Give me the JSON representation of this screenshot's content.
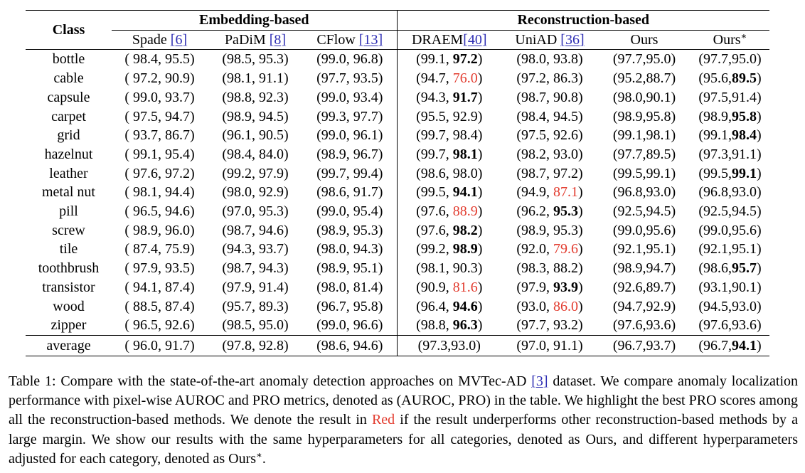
{
  "header": {
    "class_label": "Class",
    "group_embedding": "Embedding-based",
    "group_reconstruction": "Reconstruction-based",
    "methods": [
      {
        "name": "Spade ",
        "ref": "[6]"
      },
      {
        "name": "PaDiM ",
        "ref": "[8]"
      },
      {
        "name": "CFlow ",
        "ref": "[13]"
      },
      {
        "name": "DRAEM",
        "ref": "[40]"
      },
      {
        "name": "UniAD ",
        "ref": "[36]"
      },
      {
        "name": "Ours",
        "ref": ""
      },
      {
        "name": "Ours",
        "ref": "",
        "sup": "∗"
      }
    ]
  },
  "rows": [
    {
      "class": "bottle",
      "cells": [
        [
          {
            "t": "( 98.4, 95.5)"
          }
        ],
        [
          {
            "t": "(98.5, 95.3)"
          }
        ],
        [
          {
            "t": "(99.0, 96.8)"
          }
        ],
        [
          {
            "t": "(99.1, "
          },
          {
            "t": "97.2",
            "s": "b"
          },
          {
            "t": ")"
          }
        ],
        [
          {
            "t": "(98.0, 93.8)"
          }
        ],
        [
          {
            "t": "(97.7,95.0)"
          }
        ],
        [
          {
            "t": "(97.7,95.0)"
          }
        ]
      ]
    },
    {
      "class": "cable",
      "cells": [
        [
          {
            "t": "( 97.2, 90.9)"
          }
        ],
        [
          {
            "t": "(98.1, 91.1)"
          }
        ],
        [
          {
            "t": "(97.7, 93.5)"
          }
        ],
        [
          {
            "t": "(94.7, "
          },
          {
            "t": "76.0",
            "s": "red"
          },
          {
            "t": ")"
          }
        ],
        [
          {
            "t": "(97.2, 86.3)"
          }
        ],
        [
          {
            "t": "(95.2,88.7)"
          }
        ],
        [
          {
            "t": "(95.6,"
          },
          {
            "t": "89.5",
            "s": "b"
          },
          {
            "t": ")"
          }
        ]
      ]
    },
    {
      "class": "capsule",
      "cells": [
        [
          {
            "t": "( 99.0, 93.7)"
          }
        ],
        [
          {
            "t": "(98.8, 92.3)"
          }
        ],
        [
          {
            "t": "(99.0, 93.4)"
          }
        ],
        [
          {
            "t": "(94.3, "
          },
          {
            "t": "91.7",
            "s": "b"
          },
          {
            "t": ")"
          }
        ],
        [
          {
            "t": "(98.7, 90.8)"
          }
        ],
        [
          {
            "t": "(98.0,90.1)"
          }
        ],
        [
          {
            "t": "(97.5,91.4)"
          }
        ]
      ]
    },
    {
      "class": "carpet",
      "cells": [
        [
          {
            "t": "( 97.5, 94.7)"
          }
        ],
        [
          {
            "t": "(98.9, 94.5)"
          }
        ],
        [
          {
            "t": "(99.3, 97.7)"
          }
        ],
        [
          {
            "t": "(95.5, 92.9)"
          }
        ],
        [
          {
            "t": "(98.4, 94.5)"
          }
        ],
        [
          {
            "t": "(98.9,95.8)"
          }
        ],
        [
          {
            "t": "(98.9,"
          },
          {
            "t": "95.8",
            "s": "b"
          },
          {
            "t": ")"
          }
        ]
      ]
    },
    {
      "class": "grid",
      "cells": [
        [
          {
            "t": "( 93.7, 86.7)"
          }
        ],
        [
          {
            "t": "(96.1, 90.5)"
          }
        ],
        [
          {
            "t": "(99.0, 96.1)"
          }
        ],
        [
          {
            "t": "(99.7, 98.4)"
          }
        ],
        [
          {
            "t": "(97.5, 92.6)"
          }
        ],
        [
          {
            "t": "(99.1,98.1)"
          }
        ],
        [
          {
            "t": "(99.1,"
          },
          {
            "t": "98.4",
            "s": "b"
          },
          {
            "t": ")"
          }
        ]
      ]
    },
    {
      "class": "hazelnut",
      "cells": [
        [
          {
            "t": "( 99.1, 95.4)"
          }
        ],
        [
          {
            "t": "(98.4, 84.0)"
          }
        ],
        [
          {
            "t": "(98.9, 96.7)"
          }
        ],
        [
          {
            "t": "(99.7, "
          },
          {
            "t": "98.1",
            "s": "b"
          },
          {
            "t": ")"
          }
        ],
        [
          {
            "t": "(98.2, 93.0)"
          }
        ],
        [
          {
            "t": "(97.7,89.5)"
          }
        ],
        [
          {
            "t": "(97.3,91.1)"
          }
        ]
      ]
    },
    {
      "class": "leather",
      "cells": [
        [
          {
            "t": "( 97.6, 97.2)"
          }
        ],
        [
          {
            "t": "(99.2, 97.9)"
          }
        ],
        [
          {
            "t": "(99.7, 99.4)"
          }
        ],
        [
          {
            "t": "(98.6, 98.0)"
          }
        ],
        [
          {
            "t": "(98.7, 97.2)"
          }
        ],
        [
          {
            "t": "(99.5,99.1)"
          }
        ],
        [
          {
            "t": "(99.5,"
          },
          {
            "t": "99.1",
            "s": "b"
          },
          {
            "t": ")"
          }
        ]
      ]
    },
    {
      "class": "metal nut",
      "cells": [
        [
          {
            "t": "( 98.1, 94.4)"
          }
        ],
        [
          {
            "t": "(98.0, 92.9)"
          }
        ],
        [
          {
            "t": "(98.6, 91.7)"
          }
        ],
        [
          {
            "t": "(99.5, "
          },
          {
            "t": "94.1",
            "s": "b"
          },
          {
            "t": ")"
          }
        ],
        [
          {
            "t": "(94.9, "
          },
          {
            "t": "87.1",
            "s": "red"
          },
          {
            "t": ")"
          }
        ],
        [
          {
            "t": "(96.8,93.0)"
          }
        ],
        [
          {
            "t": "(96.8,93.0)"
          }
        ]
      ]
    },
    {
      "class": "pill",
      "cells": [
        [
          {
            "t": "( 96.5, 94.6)"
          }
        ],
        [
          {
            "t": "(97.0, 95.3)"
          }
        ],
        [
          {
            "t": "(99.0, 95.4)"
          }
        ],
        [
          {
            "t": "(97.6, "
          },
          {
            "t": "88.9",
            "s": "red"
          },
          {
            "t": ")"
          }
        ],
        [
          {
            "t": "(96.2, "
          },
          {
            "t": "95.3",
            "s": "b"
          },
          {
            "t": ")"
          }
        ],
        [
          {
            "t": "(92.5,94.5)"
          }
        ],
        [
          {
            "t": "(92.5,94.5)"
          }
        ]
      ]
    },
    {
      "class": "screw",
      "cells": [
        [
          {
            "t": "( 98.9, 96.0)"
          }
        ],
        [
          {
            "t": "(98.7, 94.6)"
          }
        ],
        [
          {
            "t": "(98.9, 95.3)"
          }
        ],
        [
          {
            "t": "(97.6, "
          },
          {
            "t": "98.2",
            "s": "b"
          },
          {
            "t": ")"
          }
        ],
        [
          {
            "t": "(98.9, 95.3)"
          }
        ],
        [
          {
            "t": "(99.0,95.6)"
          }
        ],
        [
          {
            "t": "(99.0,95.6)"
          }
        ]
      ]
    },
    {
      "class": "tile",
      "cells": [
        [
          {
            "t": "( 87.4, 75.9)"
          }
        ],
        [
          {
            "t": "(94.3, 93.7)"
          }
        ],
        [
          {
            "t": "(98.0, 94.3)"
          }
        ],
        [
          {
            "t": "(99.2, "
          },
          {
            "t": "98.9",
            "s": "b"
          },
          {
            "t": ")"
          }
        ],
        [
          {
            "t": "(92.0, "
          },
          {
            "t": "79.6",
            "s": "red"
          },
          {
            "t": ")"
          }
        ],
        [
          {
            "t": "(92.1,95.1)"
          }
        ],
        [
          {
            "t": "(92.1,95.1)"
          }
        ]
      ]
    },
    {
      "class": "toothbrush",
      "cells": [
        [
          {
            "t": "( 97.9, 93.5)"
          }
        ],
        [
          {
            "t": "(98.7, 94.3)"
          }
        ],
        [
          {
            "t": "(98.9, 95.1)"
          }
        ],
        [
          {
            "t": "(98.1, 90.3)"
          }
        ],
        [
          {
            "t": "(98.3, 88.2)"
          }
        ],
        [
          {
            "t": "(98.9,94.7)"
          }
        ],
        [
          {
            "t": "(98.6,"
          },
          {
            "t": "95.7",
            "s": "b"
          },
          {
            "t": ")"
          }
        ]
      ]
    },
    {
      "class": "transistor",
      "cells": [
        [
          {
            "t": "( 94.1, 87.4)"
          }
        ],
        [
          {
            "t": "(97.9, 91.4)"
          }
        ],
        [
          {
            "t": "(98.0, 81.4)"
          }
        ],
        [
          {
            "t": "(90.9, "
          },
          {
            "t": "81.6",
            "s": "red"
          },
          {
            "t": ")"
          }
        ],
        [
          {
            "t": "(97.9, "
          },
          {
            "t": "93.9",
            "s": "b"
          },
          {
            "t": ")"
          }
        ],
        [
          {
            "t": "(92.6,89.7)"
          }
        ],
        [
          {
            "t": "(93.1,90.1)"
          }
        ]
      ]
    },
    {
      "class": "wood",
      "cells": [
        [
          {
            "t": "( 88.5, 87.4)"
          }
        ],
        [
          {
            "t": "(95.7, 89.3)"
          }
        ],
        [
          {
            "t": "(96.7, 95.8)"
          }
        ],
        [
          {
            "t": "(96.4, "
          },
          {
            "t": "94.6",
            "s": "b"
          },
          {
            "t": ")"
          }
        ],
        [
          {
            "t": "(93.0, "
          },
          {
            "t": "86.0",
            "s": "red"
          },
          {
            "t": ")"
          }
        ],
        [
          {
            "t": "(94.7,92.9)"
          }
        ],
        [
          {
            "t": "(94.5,93.0)"
          }
        ]
      ]
    },
    {
      "class": "zipper",
      "cells": [
        [
          {
            "t": "( 96.5, 92.6)"
          }
        ],
        [
          {
            "t": "(98.5, 95.0)"
          }
        ],
        [
          {
            "t": "(99.0, 96.6)"
          }
        ],
        [
          {
            "t": "(98.8, "
          },
          {
            "t": "96.3",
            "s": "b"
          },
          {
            "t": ")"
          }
        ],
        [
          {
            "t": "(97.7, 93.2)"
          }
        ],
        [
          {
            "t": "(97.6,93.6)"
          }
        ],
        [
          {
            "t": "(97.6,93.6)"
          }
        ]
      ]
    }
  ],
  "average": {
    "class": "average",
    "cells": [
      [
        {
          "t": "( 96.0, 91.7)"
        }
      ],
      [
        {
          "t": "(97.8, 92.8)"
        }
      ],
      [
        {
          "t": "(98.6, 94.6)"
        }
      ],
      [
        {
          "t": "(97.3,93.0)"
        }
      ],
      [
        {
          "t": "(97.0, 91.1)"
        }
      ],
      [
        {
          "t": "(96.7,93.7)"
        }
      ],
      [
        {
          "t": "(96.7,"
        },
        {
          "t": "94.1",
          "s": "b"
        },
        {
          "t": ")"
        }
      ]
    ]
  },
  "caption": {
    "p1": "Table 1: Compare with the state-of-the-art anomaly detection approaches on MVTec-AD ",
    "ref": "[3]",
    "p2": " dataset. We compare anomaly localization performance with pixel-wise AUROC and PRO metrics, denoted as (AUROC, PRO) in the table. We highlight the best PRO scores among all the reconstruction-based methods. We denote the result in ",
    "red_word": "Red",
    "p3": " if the result underperforms other reconstruction-based methods by a large margin. We show our results with the same hyperparameters for all categories, denoted as Ours, and different hyperparameters adjusted for each category, denoted as Ours",
    "star": "∗",
    "p4": "."
  }
}
